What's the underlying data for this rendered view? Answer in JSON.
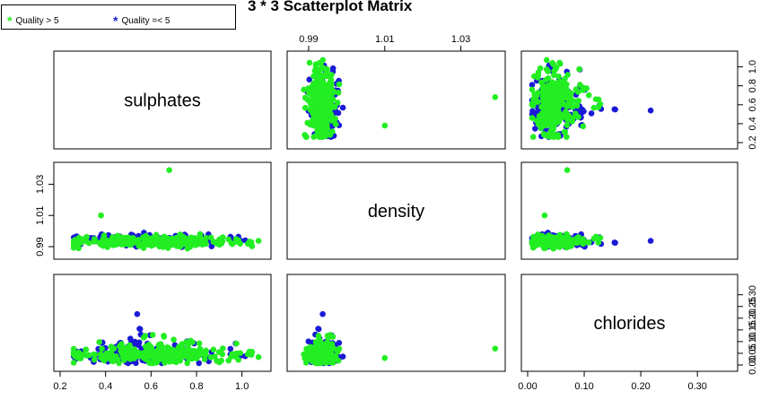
{
  "title": "3 * 3 Scatterplot Matrix",
  "legend": [
    {
      "label": "Quality > 5",
      "color": "#22ee22"
    },
    {
      "label": "Quality =< 5",
      "color": "#1a1ad6"
    }
  ],
  "colors": {
    "good": "#22ee22",
    "bad": "#1a1ad6",
    "frame": "#000000"
  },
  "chart_data": {
    "type": "scatter",
    "title": "3 * 3 Scatterplot Matrix",
    "variables": [
      "sulphates",
      "density",
      "chlorides"
    ],
    "axes": {
      "sulphates": {
        "range": [
          0.2,
          1.1
        ],
        "ticks": [
          "0.2",
          "0.4",
          "0.6",
          "0.8",
          "1.0"
        ]
      },
      "density": {
        "range": [
          0.986,
          1.04
        ],
        "ticks": [
          "0.99",
          "1.01",
          "1.03"
        ]
      },
      "chlorides": {
        "range": [
          0.0,
          0.36
        ],
        "ticks": [
          "0.00",
          "0.10",
          "0.20",
          "0.30"
        ],
        "minor_ticks": [
          "0.05",
          "0.15",
          "0.25"
        ]
      }
    },
    "tick_placement": {
      "sulphates": "bottom and right",
      "density": "top and left",
      "chlorides": "bottom and right"
    },
    "series": [
      {
        "name": "Quality > 5",
        "color": "#22ee22"
      },
      {
        "name": "Quality =< 5",
        "color": "#1a1ad6"
      }
    ],
    "notable_points": [
      {
        "series": "Quality > 5",
        "sulphates": 0.68,
        "density": 1.039,
        "chlorides": 0.07
      },
      {
        "series": "Quality > 5",
        "sulphates": 0.38,
        "density": 1.01,
        "chlorides": 0.03
      }
    ],
    "grid": false,
    "legend_position": "top-left"
  }
}
